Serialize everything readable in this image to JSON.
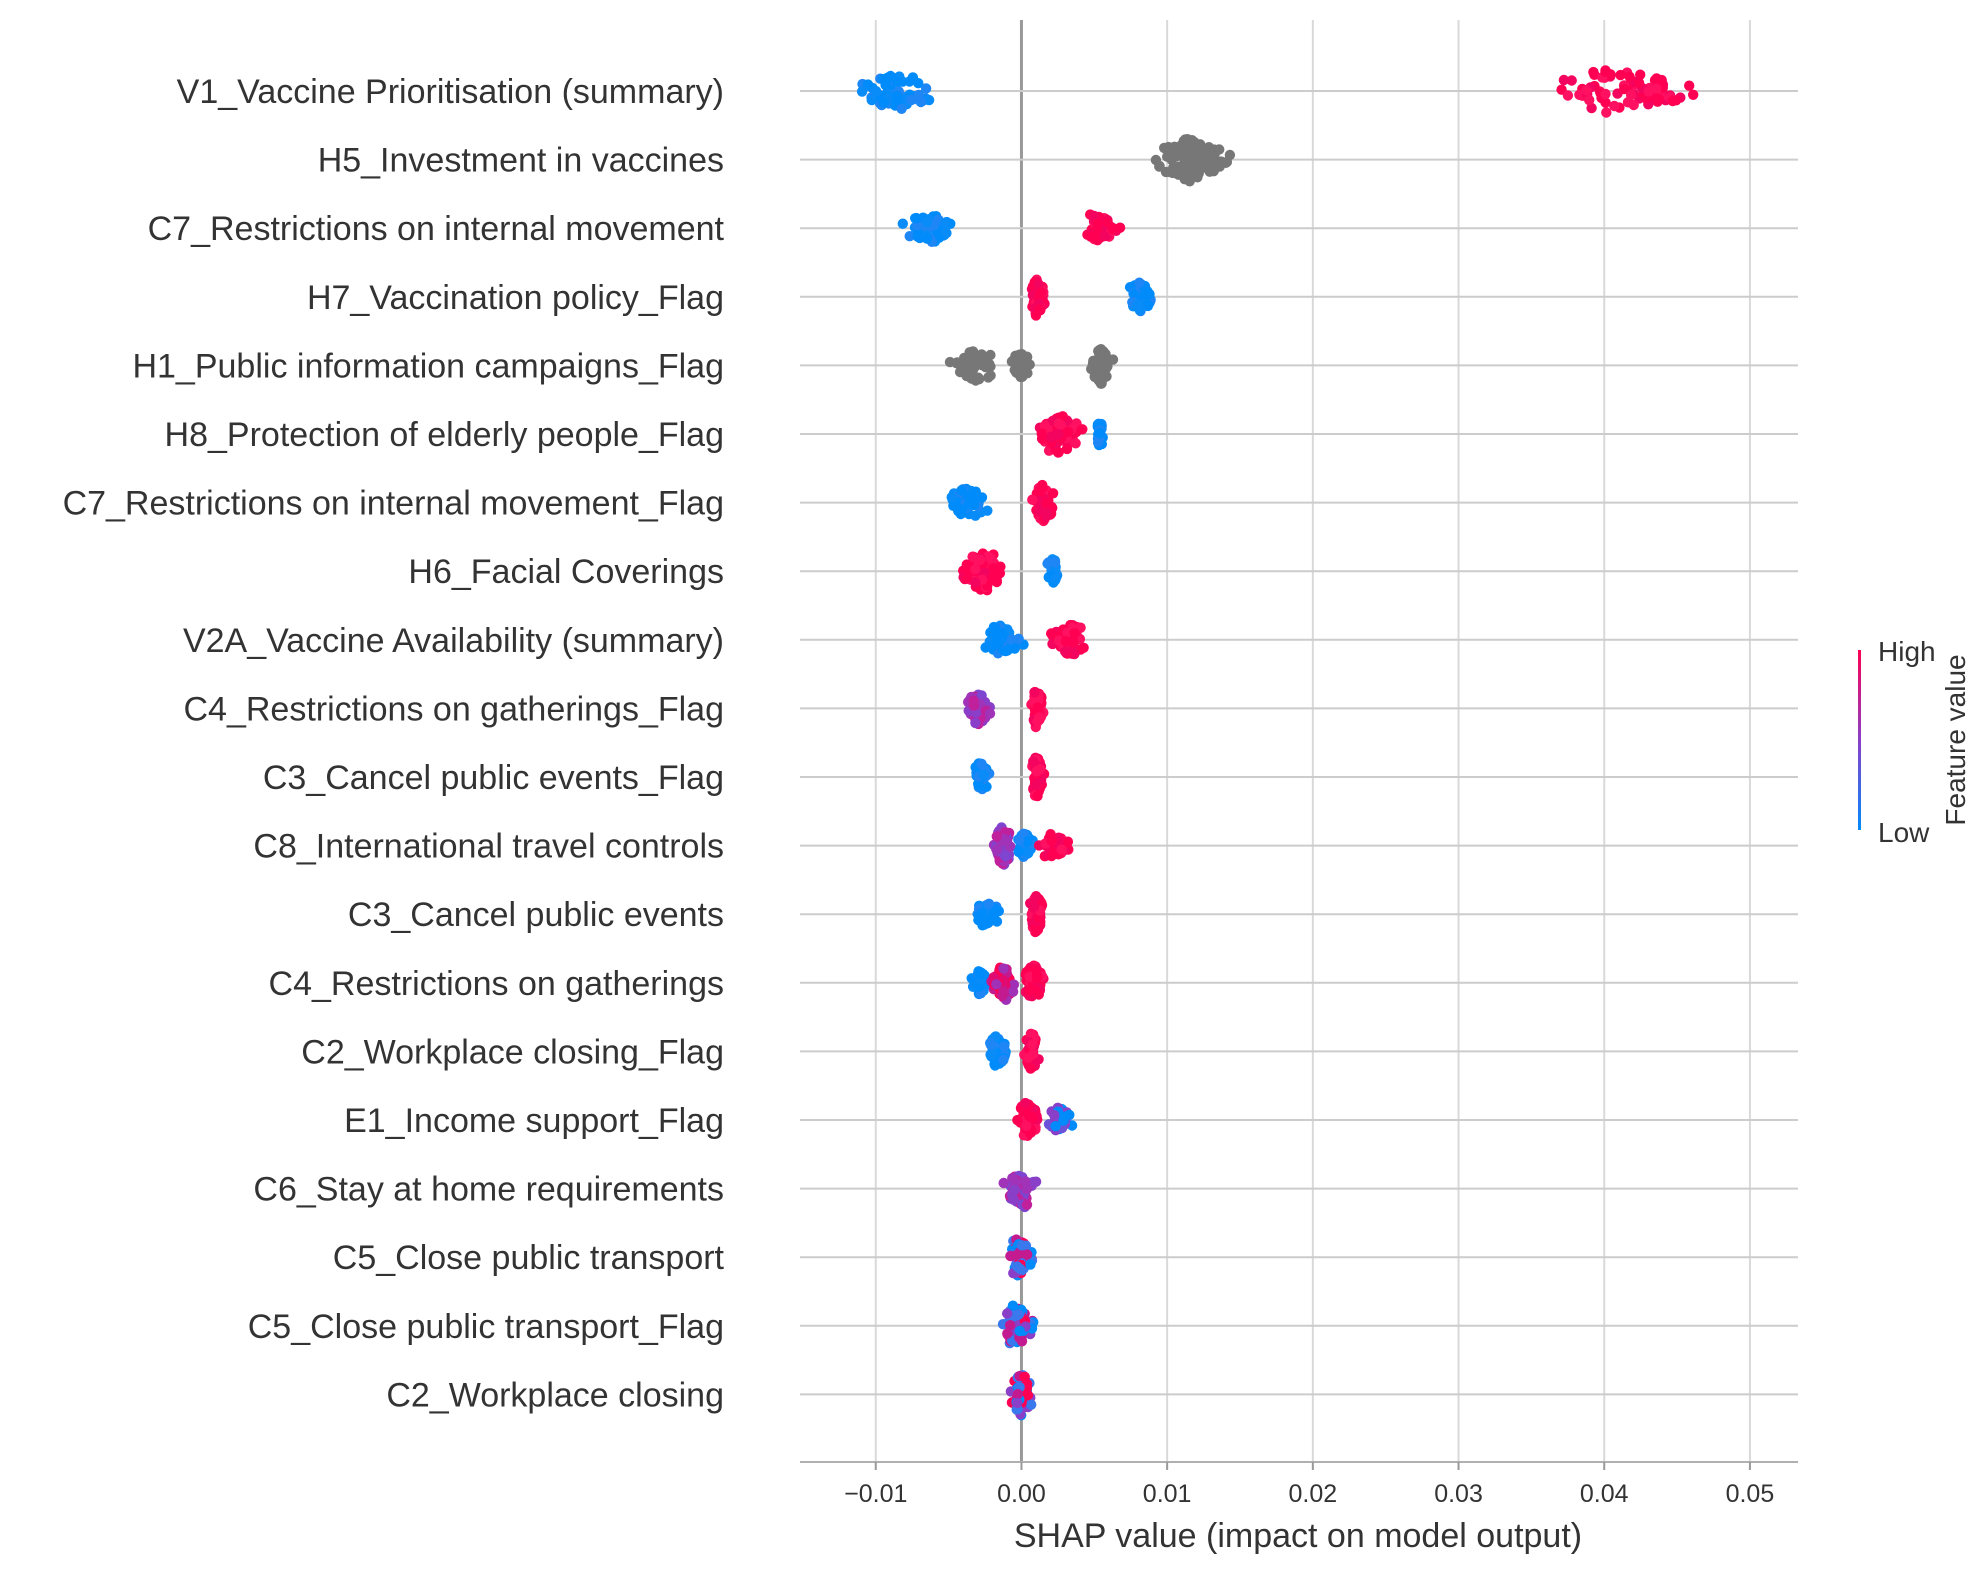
{
  "chart_data": {
    "type": "scatter",
    "subtype": "shap-beeswarm-summary",
    "title": "",
    "xlabel": "SHAP value (impact on model output)",
    "ylabel": "",
    "xlim": [
      -0.0152,
      0.0533
    ],
    "x_ticks": [
      -0.01,
      0.0,
      0.01,
      0.02,
      0.03,
      0.04,
      0.05
    ],
    "x_tick_labels": [
      "−0.01",
      "0.00",
      "0.01",
      "0.02",
      "0.03",
      "0.04",
      "0.05"
    ],
    "grid": "vertical and per-feature horizontal gridlines",
    "colorbar": {
      "title": "Feature value",
      "high_label": "High",
      "low_label": "Low",
      "high_color": "#ff0052",
      "low_color": "#008bfb",
      "missing_color": "#777777"
    },
    "features": [
      {
        "name": "V1_Vaccine Prioritisation (summary)",
        "clusters": [
          {
            "lo": -0.0125,
            "hi": -0.005,
            "center": -0.0085,
            "color": "low",
            "weight": 5
          },
          {
            "lo": 0.035,
            "hi": 0.0505,
            "center": 0.04,
            "color": "high",
            "weight": 6
          }
        ]
      },
      {
        "name": "H5_Investment in vaccines",
        "clusters": [
          {
            "lo": 0.0085,
            "hi": 0.015,
            "center": 0.0115,
            "color": "missing",
            "weight": 10
          }
        ]
      },
      {
        "name": "C7_Restrictions on internal movement",
        "clusters": [
          {
            "lo": -0.0085,
            "hi": -0.0035,
            "center": -0.0065,
            "color": "low",
            "weight": 4
          },
          {
            "lo": 0.004,
            "hi": 0.0075,
            "center": 0.005,
            "color": "high",
            "weight": 4
          }
        ]
      },
      {
        "name": "H7_Vaccination policy_Flag",
        "clusters": [
          {
            "lo": 0.0005,
            "hi": 0.002,
            "center": 0.001,
            "color": "high",
            "weight": 5
          },
          {
            "lo": 0.007,
            "hi": 0.0095,
            "center": 0.008,
            "color": "low",
            "weight": 4
          }
        ]
      },
      {
        "name": "H1_Public information campaigns_Flag",
        "clusters": [
          {
            "lo": -0.006,
            "hi": -0.001,
            "center": -0.003,
            "color": "missing",
            "weight": 4
          },
          {
            "lo": -0.001,
            "hi": 0.001,
            "center": 0.0,
            "color": "missing",
            "weight": 3
          },
          {
            "lo": 0.0045,
            "hi": 0.0065,
            "center": 0.0055,
            "color": "missing",
            "weight": 5
          }
        ]
      },
      {
        "name": "H8_Protection of elderly people_Flag",
        "clusters": [
          {
            "lo": 0.0005,
            "hi": 0.0045,
            "center": 0.0025,
            "color": "high",
            "weight": 6
          },
          {
            "lo": 0.005,
            "hi": 0.0057,
            "center": 0.0054,
            "color": "low",
            "weight": 3
          }
        ]
      },
      {
        "name": "C7_Restrictions on internal movement_Flag",
        "clusters": [
          {
            "lo": -0.006,
            "hi": -0.0015,
            "center": -0.0035,
            "color": "low",
            "weight": 4
          },
          {
            "lo": 0.0005,
            "hi": 0.0025,
            "center": 0.0015,
            "color": "high",
            "weight": 5
          }
        ]
      },
      {
        "name": "H6_Facial Coverings",
        "clusters": [
          {
            "lo": -0.0048,
            "hi": -0.0008,
            "center": -0.0025,
            "color": "high",
            "weight": 6
          },
          {
            "lo": 0.0015,
            "hi": 0.0028,
            "center": 0.0022,
            "color": "low",
            "weight": 3
          }
        ]
      },
      {
        "name": "V2A_Vaccine Availability (summary)",
        "clusters": [
          {
            "lo": -0.003,
            "hi": 0.0005,
            "center": -0.0015,
            "color": "low",
            "weight": 4
          },
          {
            "lo": 0.001,
            "hi": 0.0048,
            "center": 0.0035,
            "color": "high",
            "weight": 4
          }
        ]
      },
      {
        "name": "C4_Restrictions on gatherings_Flag",
        "clusters": [
          {
            "lo": -0.004,
            "hi": -0.0015,
            "center": -0.003,
            "color": "mid",
            "weight": 4
          },
          {
            "lo": 0.0005,
            "hi": 0.0018,
            "center": 0.001,
            "color": "high",
            "weight": 5
          }
        ]
      },
      {
        "name": "C3_Cancel public events_Flag",
        "clusters": [
          {
            "lo": -0.0035,
            "hi": -0.002,
            "center": -0.0028,
            "color": "low",
            "weight": 4
          },
          {
            "lo": 0.0005,
            "hi": 0.0018,
            "center": 0.001,
            "color": "high",
            "weight": 6
          }
        ]
      },
      {
        "name": "C8_International travel controls",
        "clusters": [
          {
            "lo": -0.0022,
            "hi": -0.0005,
            "center": -0.0012,
            "color": "mid",
            "weight": 6
          },
          {
            "lo": -0.0005,
            "hi": 0.001,
            "center": 0.0002,
            "color": "low",
            "weight": 3
          },
          {
            "lo": 0.001,
            "hi": 0.004,
            "center": 0.0018,
            "color": "high",
            "weight": 3
          }
        ]
      },
      {
        "name": "C3_Cancel public events",
        "clusters": [
          {
            "lo": -0.0035,
            "hi": -0.001,
            "center": -0.0025,
            "color": "low",
            "weight": 3
          },
          {
            "lo": 0.0003,
            "hi": 0.0018,
            "center": 0.001,
            "color": "high",
            "weight": 5
          }
        ]
      },
      {
        "name": "C4_Restrictions on gatherings",
        "clusters": [
          {
            "lo": -0.0035,
            "hi": -0.002,
            "center": -0.003,
            "color": "low",
            "weight": 3
          },
          {
            "lo": -0.0025,
            "hi": 0.0,
            "center": -0.0012,
            "color": "mid-high",
            "weight": 5
          },
          {
            "lo": 0.0,
            "hi": 0.0018,
            "center": 0.0008,
            "color": "high",
            "weight": 5
          }
        ]
      },
      {
        "name": "C2_Workplace closing_Flag",
        "clusters": [
          {
            "lo": -0.0025,
            "hi": -0.0005,
            "center": -0.0018,
            "color": "low",
            "weight": 4
          },
          {
            "lo": 0.0,
            "hi": 0.0013,
            "center": 0.0007,
            "color": "high",
            "weight": 5
          }
        ]
      },
      {
        "name": "E1_Income support_Flag",
        "clusters": [
          {
            "lo": -0.0005,
            "hi": 0.0015,
            "center": 0.0003,
            "color": "high",
            "weight": 5
          },
          {
            "lo": 0.0015,
            "hi": 0.0037,
            "center": 0.0025,
            "color": "mid-low",
            "weight": 3
          }
        ]
      },
      {
        "name": "C6_Stay at home requirements",
        "clusters": [
          {
            "lo": -0.0018,
            "hi": 0.0015,
            "center": 0.0003,
            "color": "mid",
            "weight": 5
          }
        ]
      },
      {
        "name": "C5_Close public transport",
        "clusters": [
          {
            "lo": -0.0012,
            "hi": 0.0015,
            "center": -0.0003,
            "color": "mixed",
            "weight": 5
          }
        ]
      },
      {
        "name": "C5_Close public transport_Flag",
        "clusters": [
          {
            "lo": -0.0015,
            "hi": 0.0015,
            "center": -0.0005,
            "color": "mixed",
            "weight": 6
          }
        ]
      },
      {
        "name": "C2_Workplace closing",
        "clusters": [
          {
            "lo": -0.001,
            "hi": 0.001,
            "center": 0.0,
            "color": "mixed",
            "weight": 6
          }
        ]
      }
    ]
  }
}
